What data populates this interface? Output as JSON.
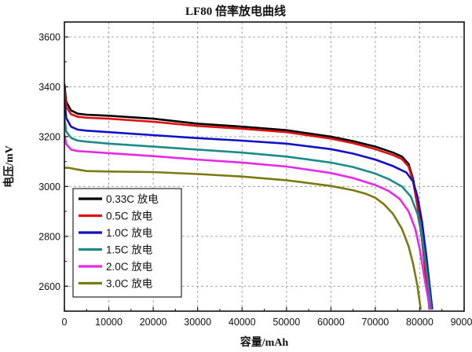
{
  "chart_data": {
    "type": "line",
    "title": "LF80 倍率放电曲线",
    "xlabel": "容量/mAh",
    "ylabel": "电压/mV",
    "xlim": [
      0,
      90000
    ],
    "ylim": [
      2500,
      3660
    ],
    "x_ticks": [
      0,
      10000,
      20000,
      30000,
      40000,
      50000,
      60000,
      70000,
      80000,
      90000
    ],
    "y_ticks": [
      2600,
      2800,
      3000,
      3200,
      3400,
      3600
    ],
    "grid": true,
    "legend_position": "bottom-left",
    "series": [
      {
        "name": "0.33C 放电",
        "color": "#000000",
        "x": [
          0,
          400,
          1500,
          3000,
          5000,
          10000,
          20000,
          30000,
          40000,
          50000,
          60000,
          65000,
          70000,
          74000,
          76000,
          77500,
          78500,
          79500,
          80500,
          81500,
          82200
        ],
        "y": [
          3410,
          3340,
          3305,
          3292,
          3288,
          3284,
          3272,
          3252,
          3240,
          3226,
          3200,
          3182,
          3160,
          3136,
          3120,
          3090,
          3030,
          2930,
          2790,
          2620,
          2510
        ]
      },
      {
        "name": "0.5C 放电",
        "color": "#e01010",
        "x": [
          0,
          400,
          1500,
          3000,
          5000,
          10000,
          20000,
          30000,
          40000,
          50000,
          60000,
          65000,
          70000,
          74000,
          76000,
          77500,
          78500,
          79500,
          80500,
          81500,
          82300
        ],
        "y": [
          3390,
          3320,
          3290,
          3280,
          3276,
          3272,
          3260,
          3243,
          3232,
          3218,
          3192,
          3174,
          3150,
          3126,
          3110,
          3080,
          3020,
          2920,
          2790,
          2630,
          2510
        ]
      },
      {
        "name": "1.0C 放电",
        "color": "#1010c8",
        "x": [
          0,
          400,
          1500,
          3000,
          5000,
          10000,
          20000,
          30000,
          40000,
          50000,
          60000,
          65000,
          70000,
          74000,
          77000,
          78500,
          79500,
          80500,
          81500,
          82300,
          82800
        ],
        "y": [
          3350,
          3275,
          3240,
          3228,
          3224,
          3218,
          3206,
          3194,
          3184,
          3172,
          3150,
          3132,
          3108,
          3082,
          3056,
          3020,
          2960,
          2860,
          2720,
          2590,
          2510
        ]
      },
      {
        "name": "1.5C 放电",
        "color": "#1a8a8a",
        "x": [
          0,
          400,
          1500,
          3000,
          5000,
          10000,
          20000,
          30000,
          40000,
          50000,
          60000,
          65000,
          70000,
          73000,
          76000,
          78000,
          79500,
          80500,
          81500,
          82200,
          82600
        ],
        "y": [
          3280,
          3220,
          3195,
          3184,
          3180,
          3172,
          3160,
          3148,
          3136,
          3120,
          3096,
          3078,
          3052,
          3030,
          3000,
          2960,
          2890,
          2800,
          2670,
          2570,
          2510
        ]
      },
      {
        "name": "2.0C 放电",
        "color": "#e828e8",
        "x": [
          0,
          400,
          1500,
          3000,
          5000,
          10000,
          20000,
          30000,
          40000,
          50000,
          60000,
          65000,
          70000,
          73000,
          75500,
          77500,
          79000,
          80000,
          81000,
          81800,
          82300
        ],
        "y": [
          3210,
          3170,
          3148,
          3142,
          3140,
          3134,
          3122,
          3108,
          3096,
          3080,
          3054,
          3034,
          3006,
          2982,
          2950,
          2900,
          2830,
          2750,
          2640,
          2560,
          2510
        ]
      },
      {
        "name": "3.0C 放电",
        "color": "#7a7a10",
        "x": [
          0,
          1000,
          3000,
          5000,
          10000,
          20000,
          30000,
          40000,
          50000,
          60000,
          65000,
          68000,
          70000,
          72000,
          74000,
          76000,
          77500,
          78500,
          79500,
          80200
        ],
        "y": [
          3075,
          3075,
          3068,
          3062,
          3060,
          3058,
          3050,
          3040,
          3025,
          3002,
          2985,
          2970,
          2955,
          2928,
          2890,
          2830,
          2760,
          2690,
          2600,
          2510
        ]
      }
    ]
  }
}
